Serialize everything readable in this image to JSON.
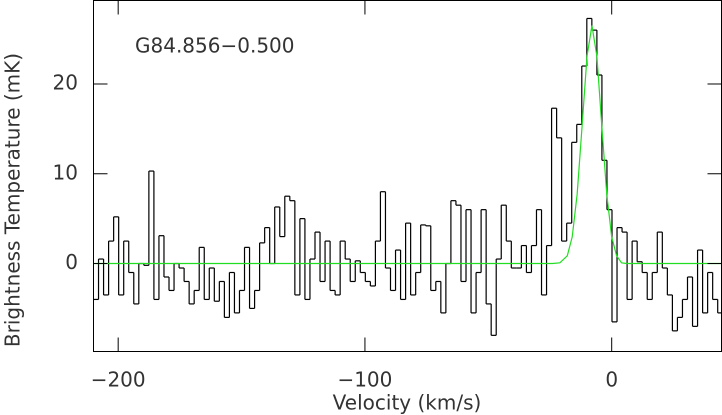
{
  "chart_data": {
    "type": "step",
    "annotation": "G84.856−0.500",
    "x_label": "Velocity (km/s)",
    "y_label": "Brightness Temperature (mK)",
    "xlim": [
      -210,
      44.5
    ],
    "ylim": [
      -9.8,
      29.3
    ],
    "xticks": [
      {
        "value": -200,
        "label": "−200"
      },
      {
        "value": -100,
        "label": "−100"
      },
      0
    ],
    "yticks": [
      0,
      10,
      20
    ],
    "channel_width": 2.04,
    "series": [
      {
        "type": "step",
        "color": "#000000",
        "x": [
          -208.98,
          -206.94,
          -204.9,
          -202.86,
          -200.82,
          -198.78,
          -196.74,
          -194.7,
          -192.66,
          -190.62,
          -188.58,
          -186.54,
          -184.5,
          -182.46,
          -180.42,
          -178.38,
          -176.34,
          -174.3,
          -172.26,
          -170.22,
          -168.18,
          -166.14,
          -164.1,
          -162.06,
          -160.02,
          -157.98,
          -155.94,
          -153.9,
          -151.86,
          -149.82,
          -147.78,
          -145.74,
          -143.7,
          -141.66,
          -139.62,
          -137.58,
          -135.54,
          -133.5,
          -131.46,
          -129.42,
          -127.38,
          -125.34,
          -123.3,
          -121.26,
          -119.22,
          -117.18,
          -115.14,
          -113.1,
          -111.06,
          -109.02,
          -106.98,
          -104.94,
          -102.9,
          -100.86,
          -98.82,
          -96.78,
          -94.74,
          -92.7,
          -90.66,
          -88.62,
          -86.58,
          -84.54,
          -82.5,
          -80.46,
          -78.42,
          -76.38,
          -74.34,
          -72.3,
          -70.26,
          -68.22,
          -66.18,
          -64.14,
          -62.1,
          -60.06,
          -58.02,
          -55.98,
          -53.94,
          -51.9,
          -49.86,
          -47.82,
          -45.78,
          -43.74,
          -41.7,
          -39.66,
          -37.62,
          -35.58,
          -33.54,
          -31.5,
          -29.46,
          -27.42,
          -25.38,
          -23.34,
          -21.3,
          -19.26,
          -17.22,
          -15.18,
          -13.14,
          -11.1,
          -9.06,
          -7.02,
          -4.98,
          -2.94,
          -0.9,
          1.14,
          3.18,
          5.22,
          7.26,
          9.3,
          11.34,
          13.38,
          15.42,
          17.46,
          19.5,
          21.54,
          23.58,
          25.62,
          27.66,
          29.7,
          31.74,
          33.78,
          35.82,
          37.86,
          39.9,
          41.94,
          43.98
        ],
        "values": [
          -4,
          0.5,
          -3.5,
          2.5,
          5.2,
          -3.5,
          2.5,
          -1,
          -4.5,
          0,
          -0.2,
          10.3,
          -4,
          3.1,
          -1.5,
          -3,
          0,
          -0.5,
          -2,
          -4.5,
          -3,
          1.8,
          -4,
          -0.5,
          -4.2,
          -2,
          -6,
          -1,
          -5.5,
          -3,
          1.8,
          -5,
          -3,
          2.3,
          4,
          0,
          6.3,
          3,
          7.5,
          7,
          -3.5,
          5,
          -4,
          0.5,
          3.5,
          -2,
          2.5,
          -3,
          -3.5,
          2.5,
          0.5,
          -2,
          0.3,
          -1,
          -2,
          -2.5,
          2.5,
          8,
          -0.5,
          -3,
          1.5,
          -4,
          4.5,
          -3.5,
          -1,
          4.3,
          4.2,
          -3,
          -2,
          -5.5,
          0,
          7,
          6.5,
          -2,
          6,
          -5.5,
          -1,
          6,
          -4.5,
          -8,
          0.5,
          6.5,
          2.5,
          -0.5,
          -0.5,
          2,
          -1,
          2,
          6,
          -3.5,
          2,
          17.3,
          14,
          2.5,
          4.5,
          13.5,
          15.5,
          22,
          27.3,
          26,
          21,
          11.5,
          6,
          -6.5,
          4,
          3.5,
          -4,
          2.5,
          0.2,
          -1,
          -4,
          -1,
          3.5,
          -0.5,
          -3.5,
          -7.5,
          -6,
          -4,
          -1.5,
          -7,
          1.5,
          -5.5,
          -1,
          -4,
          -5.5
        ]
      },
      {
        "type": "line",
        "color": "#22dd22",
        "x": [
          -210,
          -24,
          -21,
          -18,
          -16,
          -14,
          -12,
          -10,
          -8,
          -6,
          -4,
          -2,
          0,
          2,
          4,
          6,
          44.5
        ],
        "values": [
          0,
          0,
          0.08,
          0.86,
          2.96,
          7.72,
          15.3,
          23.1,
          26.5,
          23.1,
          15.3,
          7.72,
          2.96,
          0.86,
          0.08,
          0,
          0
        ]
      }
    ]
  }
}
